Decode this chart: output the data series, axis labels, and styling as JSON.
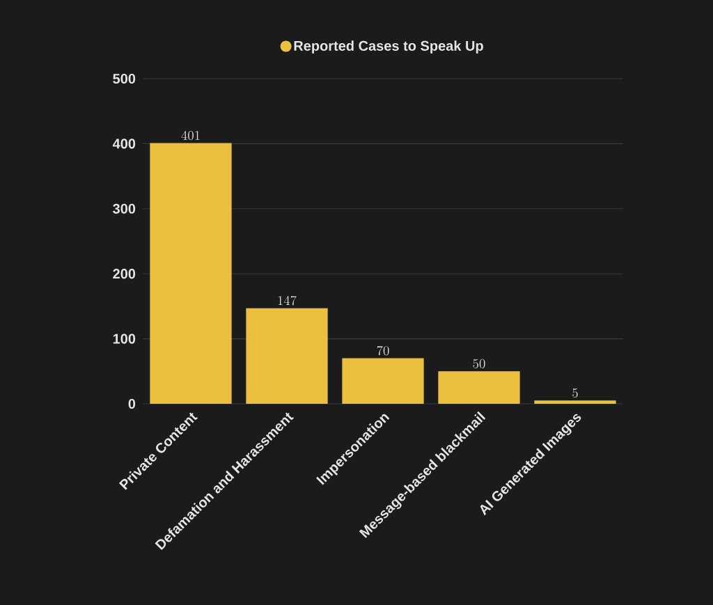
{
  "chart_data": {
    "type": "bar",
    "categories": [
      "Private Content",
      "Defamation and Harassment",
      "Impersonation",
      "Message-based blackmail",
      "AI Generated Images"
    ],
    "series": [
      {
        "name": "Reported Cases to Speak Up",
        "color": "#ebc03f",
        "values": [
          401,
          147,
          70,
          50,
          5
        ]
      }
    ],
    "ylim": [
      0,
      500
    ],
    "yticks": [
      0,
      100,
      200,
      300,
      400,
      500
    ],
    "grid": "y",
    "legend": "top",
    "data_labels": true
  }
}
